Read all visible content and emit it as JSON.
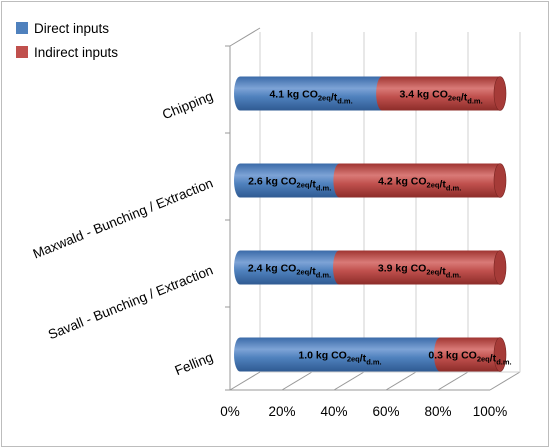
{
  "chart_data": {
    "type": "bar",
    "orientation": "horizontal",
    "stacked": "percent",
    "categories": [
      "Chipping",
      "Maxwald - Bunching / Extraction",
      "Savall - Bunching / Extraction",
      "Felling"
    ],
    "series": [
      {
        "name": "Direct inputs",
        "color": "#4f81bd",
        "values": [
          4.1,
          2.6,
          2.4,
          1.0
        ],
        "labels": [
          "4.1",
          "2.6",
          "2.4",
          "1.0"
        ]
      },
      {
        "name": "Indirect inputs",
        "color": "#c0504d",
        "values": [
          3.4,
          4.2,
          3.9,
          0.3
        ],
        "labels": [
          "3.4",
          "4.2",
          "3.9",
          "0.3"
        ]
      }
    ],
    "label_unit": {
      "prefix": " kg CO",
      "sub1": "2eq",
      "slash": "/t",
      "sub2": "d.m."
    },
    "x_ticks": [
      "0%",
      "20%",
      "40%",
      "60%",
      "80%",
      "100%"
    ],
    "xlim": [
      0,
      100
    ],
    "grid": true,
    "legend_position": "top-left"
  }
}
